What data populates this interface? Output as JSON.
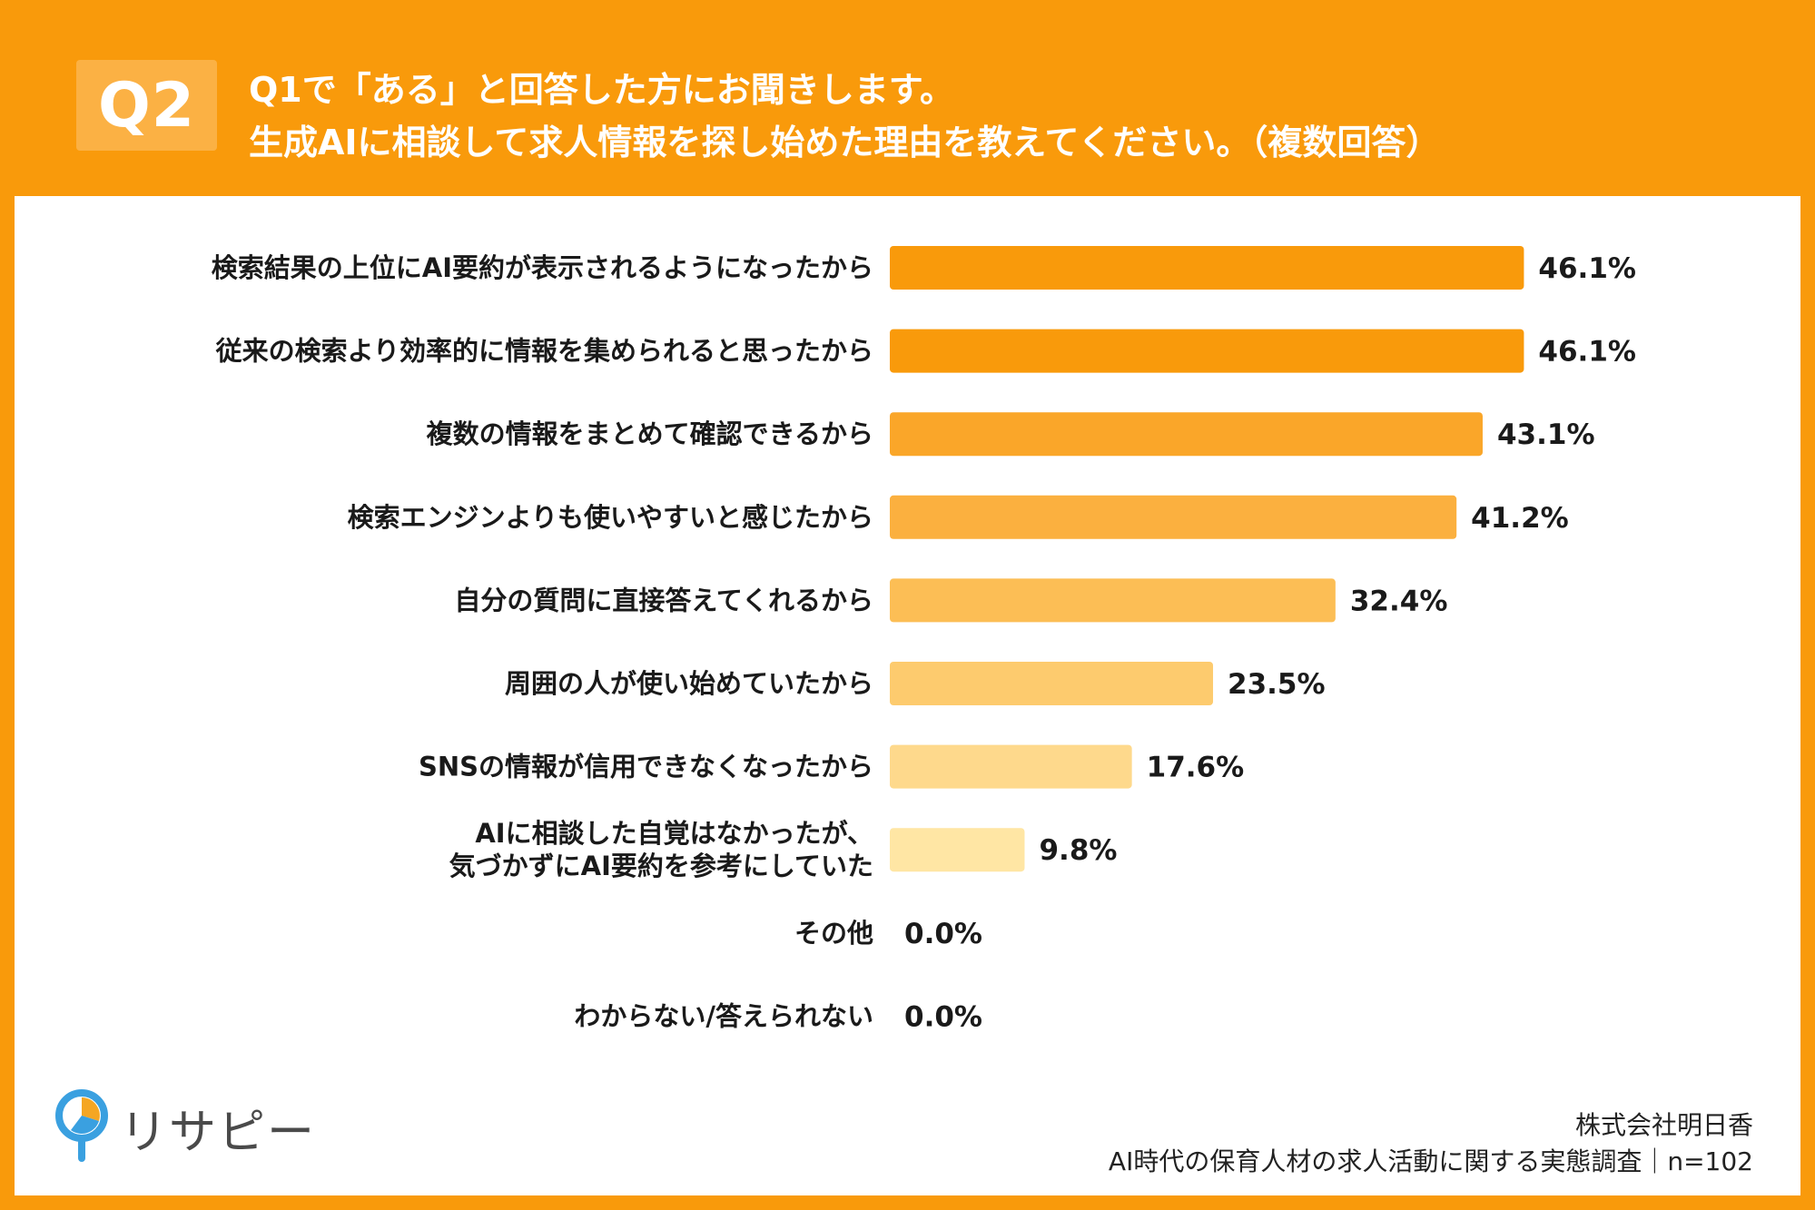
{
  "header": {
    "badge": "Q2",
    "title_line1": "Q1で「ある」と回答した方にお聞きします。",
    "title_line2": "生成AIに相談して求人情報を探し始めた理由を教えてください。（複数回答）"
  },
  "chart_data": {
    "type": "bar",
    "orientation": "horizontal",
    "title": "生成AIに相談して求人情報を探し始めた理由を教えてください。（複数回答）",
    "categories": [
      [
        "検索結果の上位にAI要約が表示されるようになったから"
      ],
      [
        "従来の検索より効率的に情報を集められると思ったから"
      ],
      [
        "複数の情報をまとめて確認できるから"
      ],
      [
        "検索エンジンよりも使いやすいと感じたから"
      ],
      [
        "自分の質問に直接答えてくれるから"
      ],
      [
        "周囲の人が使い始めていたから"
      ],
      [
        "SNSの情報が信用できなくなったから"
      ],
      [
        "AIに相談した自覚はなかったが、",
        "気づかずにAI要約を参考にしていた"
      ],
      [
        "その他"
      ],
      [
        "わからない/答えられない"
      ]
    ],
    "values": [
      46.1,
      46.1,
      43.1,
      41.2,
      32.4,
      23.5,
      17.6,
      9.8,
      0.0,
      0.0
    ],
    "value_labels": [
      "46.1%",
      "46.1%",
      "43.1%",
      "41.2%",
      "32.4%",
      "23.5%",
      "17.6%",
      "9.8%",
      "0.0%",
      "0.0%"
    ],
    "bar_colors": [
      "#F99A0B",
      "#F99A0B",
      "#FAA629",
      "#FBB03F",
      "#FCBE55",
      "#FDCB6E",
      "#FED98C",
      "#FFE6A4",
      "#FFE6A4",
      "#FFE6A4"
    ],
    "xlim": [
      0,
      100
    ],
    "xlabel": "",
    "ylabel": "",
    "grid": false
  },
  "logo": {
    "text": "リサピー"
  },
  "footer": {
    "line1": "株式会社明日香",
    "line2": "AI時代の保育人材の求人活動に関する実態調査｜n=102"
  }
}
